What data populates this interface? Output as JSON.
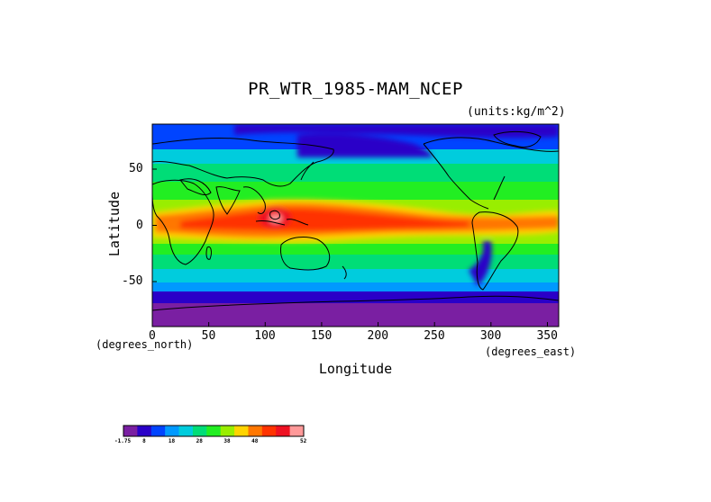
{
  "figure": {
    "title": "PR_WTR_1985-MAM_NCEP",
    "units": "(units:kg/m^2)",
    "ylabel": "Latitude",
    "xlabel": "Longitude",
    "y_units": "(degrees_north)",
    "x_units": "(degrees_east)"
  },
  "map": {
    "projection": "equirectangular",
    "lon_range": [
      0,
      360
    ],
    "lat_range": [
      -90,
      90
    ],
    "x_ticks": [
      "0",
      "50",
      "100",
      "150",
      "200",
      "250",
      "300",
      "350"
    ],
    "y_ticks": [
      "50",
      "0",
      "-50"
    ]
  },
  "colorbar": {
    "labels": [
      "-1.75",
      "8",
      "18",
      "28",
      "38",
      "48",
      "52"
    ],
    "colors": [
      "#7a1fa2",
      "#2a00c8",
      "#0044ff",
      "#0099ff",
      "#00ccdd",
      "#00dd77",
      "#22ee22",
      "#99ee00",
      "#ffd400",
      "#ff7700",
      "#ff3300",
      "#ee1122",
      "#ff9999"
    ]
  }
}
